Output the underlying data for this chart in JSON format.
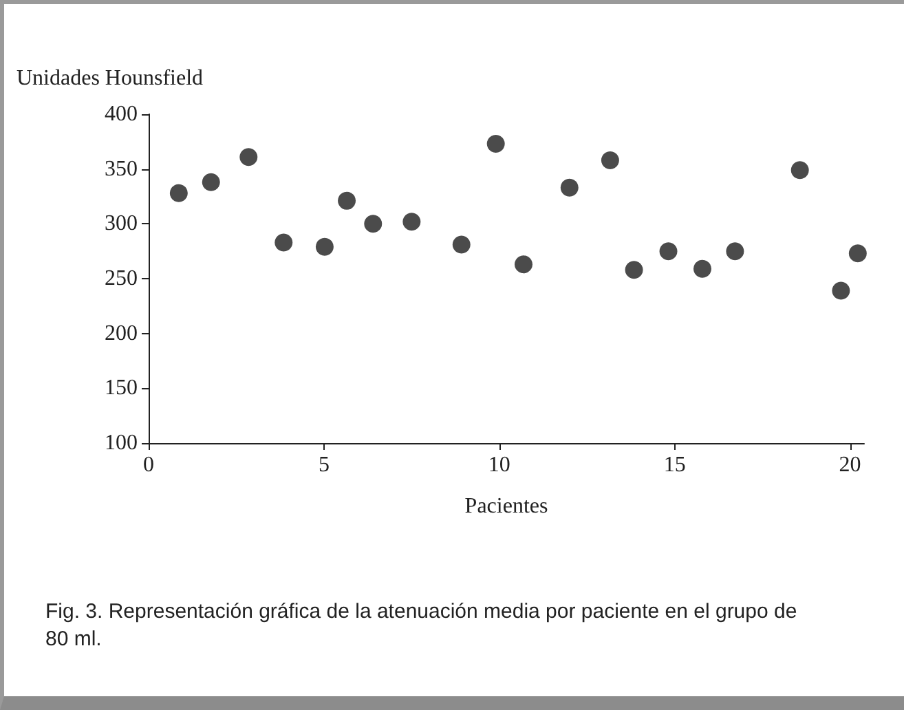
{
  "chart_data": {
    "type": "scatter",
    "xlabel": "Pacientes",
    "ylabel": "Unidades Hounsfield",
    "x": [
      0.86,
      1.78,
      2.85,
      3.85,
      5.02,
      5.65,
      6.4,
      7.5,
      8.92,
      9.9,
      10.69,
      12.0,
      13.16,
      13.84,
      14.82,
      15.79,
      16.72,
      18.57,
      19.74,
      20.22
    ],
    "values": [
      328,
      338,
      361,
      283,
      279,
      321,
      300,
      302,
      281,
      373,
      263,
      333,
      358,
      258,
      275,
      259,
      275,
      349,
      239,
      273
    ],
    "color": "#1e1e1e",
    "marker": "circle",
    "xlim": [
      0,
      20.4
    ],
    "xticks": [
      0,
      5,
      10,
      15,
      20
    ],
    "ylim": [
      100,
      400
    ],
    "yticks": [
      100,
      150,
      200,
      250,
      300,
      350,
      400
    ],
    "grid": false,
    "annotations": [
      "Fig. 3. Representación gráfica de la atenuación media por paciente en el grupo de 80 ml."
    ]
  }
}
